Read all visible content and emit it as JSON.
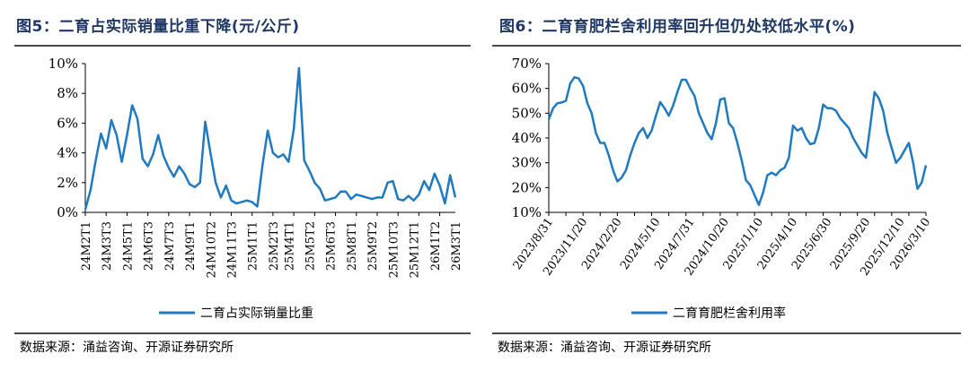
{
  "left": {
    "title": "图5：二育占实际销量比重下降(元/公斤)",
    "source": "数据来源：涌益咨询、开源证券研究所",
    "chart_data": {
      "type": "line",
      "title": "",
      "xlabel": "",
      "ylabel": "",
      "ylim": [
        0,
        10
      ],
      "ytick_values": [
        0,
        2,
        4,
        6,
        8,
        10
      ],
      "ytick_labels": [
        "0%",
        "2%",
        "4%",
        "6%",
        "8%",
        "10%"
      ],
      "xtick_labels": [
        "24M2T1",
        "24M3T3",
        "24M5T1",
        "24M6T3",
        "24M7T3",
        "24M9T1",
        "24M10T2",
        "24M11T3",
        "25M1T1",
        "25M2T3",
        "25M4T1",
        "25M5T2",
        "25M6T3",
        "25M8T1",
        "25M9T2",
        "25M10T3",
        "25M12T1",
        "26M1T2",
        "26M3T1"
      ],
      "legend": "bottom-center",
      "series": [
        {
          "name": "二育占实际销量比重",
          "color": "#1f7ac0",
          "values": [
            0.2,
            1.5,
            3.5,
            5.3,
            4.3,
            6.2,
            5.2,
            3.4,
            5.2,
            7.2,
            6.3,
            3.6,
            3.1,
            3.9,
            5.2,
            3.8,
            3.0,
            2.4,
            3.1,
            2.6,
            1.9,
            1.7,
            2.0,
            6.1,
            4.0,
            2.0,
            1.0,
            1.8,
            0.8,
            0.6,
            0.7,
            0.8,
            0.7,
            0.4,
            3.2,
            5.5,
            4.0,
            3.7,
            3.9,
            3.4,
            5.6,
            9.7,
            3.5,
            2.8,
            2.0,
            1.6,
            0.8,
            0.9,
            1.0,
            1.4,
            1.4,
            0.9,
            1.2,
            1.1,
            1.0,
            0.9,
            1.0,
            1.0,
            2.0,
            2.1,
            0.9,
            0.8,
            1.1,
            0.8,
            1.2,
            2.1,
            1.5,
            2.6,
            1.8,
            0.6,
            2.5,
            1.0
          ]
        }
      ]
    }
  },
  "right": {
    "title": "图6：二育育肥栏舍利用率回升但仍处较低水平(%)",
    "source": "数据来源：涌益咨询、开源证券研究所",
    "chart_data": {
      "type": "line",
      "title": "",
      "xlabel": "",
      "ylabel": "",
      "ylim": [
        10,
        70
      ],
      "ytick_values": [
        10,
        20,
        30,
        40,
        50,
        60,
        70
      ],
      "ytick_labels": [
        "10%",
        "20%",
        "30%",
        "40%",
        "50%",
        "60%",
        "70%"
      ],
      "xtick_labels": [
        "2023/8/31",
        "2023/11/20",
        "2024/2/20",
        "2024/5/10",
        "2024/7/31",
        "2024/10/20",
        "2025/1/10",
        "2025/4/10",
        "2025/6/30",
        "2025/9/20",
        "2025/12/10",
        "2026/3/10"
      ],
      "legend": "bottom-center",
      "series": [
        {
          "name": "二育育肥栏舍利用率",
          "color": "#1f7ac0",
          "values": [
            47.5,
            52,
            54,
            54.3,
            55,
            62,
            64.5,
            64,
            61,
            54,
            50,
            42,
            38,
            38,
            33,
            27,
            22.5,
            24,
            27,
            33,
            38,
            42,
            44,
            40,
            43,
            49,
            54.5,
            52,
            49,
            53,
            58.5,
            63.5,
            63.5,
            60,
            57,
            50,
            46,
            42,
            39.5,
            46,
            55.5,
            56,
            46,
            44,
            38,
            31,
            23,
            21,
            17,
            13,
            18,
            25,
            26,
            25,
            27,
            28,
            32,
            45,
            43,
            44,
            40,
            37.5,
            38,
            44,
            53.5,
            52,
            52,
            51,
            48,
            46,
            44,
            40,
            37,
            34,
            32,
            45,
            58.5,
            56,
            51,
            42,
            36,
            30,
            32,
            35,
            38,
            30,
            19.5,
            22,
            29
          ]
        }
      ]
    }
  }
}
